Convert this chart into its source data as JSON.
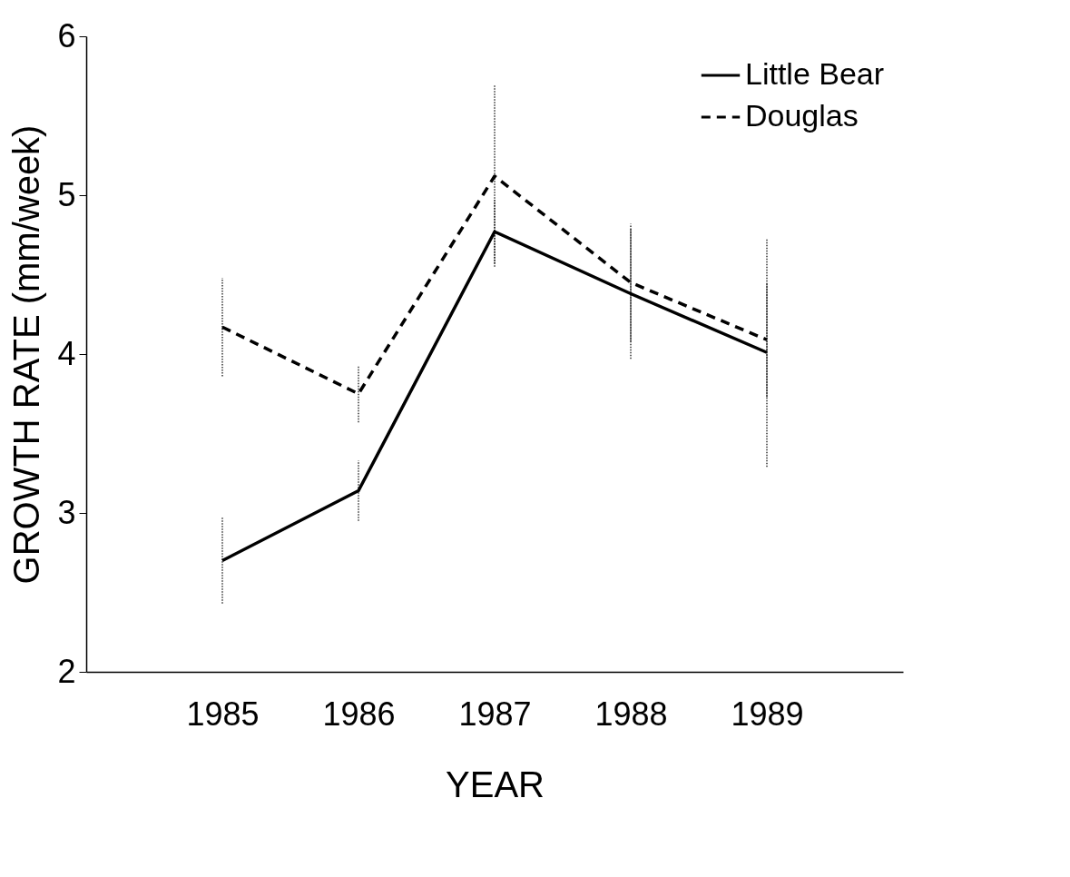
{
  "chart_data": {
    "type": "line",
    "xlabel": "YEAR",
    "ylabel": "GROWTH RATE (mm/week)",
    "x": [
      1985,
      1986,
      1987,
      1988,
      1989
    ],
    "xlim": [
      1984,
      1990
    ],
    "xticks": [
      1985,
      1986,
      1987,
      1988,
      1989
    ],
    "ylim": [
      2,
      6
    ],
    "yticks": [
      2,
      3,
      4,
      5,
      6
    ],
    "legend": "top right",
    "series": [
      {
        "name": "Little Bear",
        "color": "#000000",
        "line_style": "solid",
        "values": [
          2.7,
          3.14,
          4.77,
          4.38,
          4.01
        ],
        "errors": [
          0.27,
          0.19,
          0.2,
          0.41,
          0.72
        ]
      },
      {
        "name": "Douglas",
        "color": "#000000",
        "line_style": "dashed",
        "values": [
          4.17,
          3.75,
          5.12,
          4.45,
          4.09
        ],
        "errors": [
          0.31,
          0.18,
          0.57,
          0.37,
          0.36
        ]
      }
    ]
  }
}
